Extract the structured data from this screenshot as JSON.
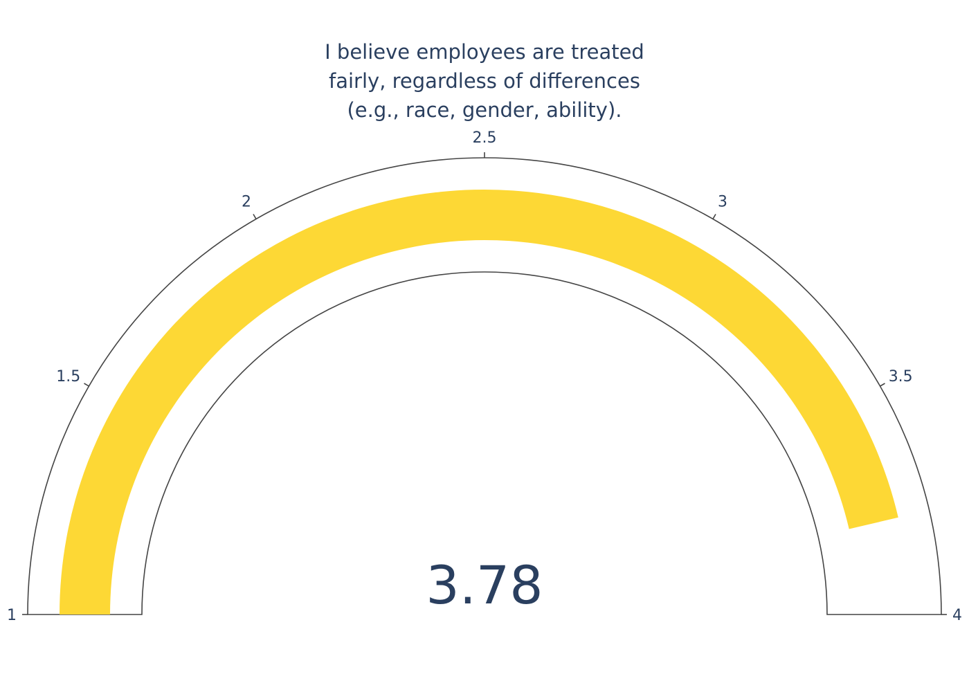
{
  "chart_data": {
    "type": "gauge",
    "title_lines": [
      "I believe employees are treated",
      "fairly, regardless of differences",
      "(e.g., race, gender, ability)."
    ],
    "value": 3.78,
    "value_text": "3.78",
    "range": [
      1,
      4
    ],
    "ticks": [
      1,
      1.5,
      2,
      2.5,
      3,
      3.5,
      4
    ],
    "tick_labels": [
      "1",
      "1.5",
      "2",
      "2.5",
      "3",
      "3.5",
      "4"
    ],
    "colors": {
      "bar": "#fdd835",
      "outline": "#444444",
      "text": "#2a3f5f",
      "background": "#ffffff"
    }
  }
}
